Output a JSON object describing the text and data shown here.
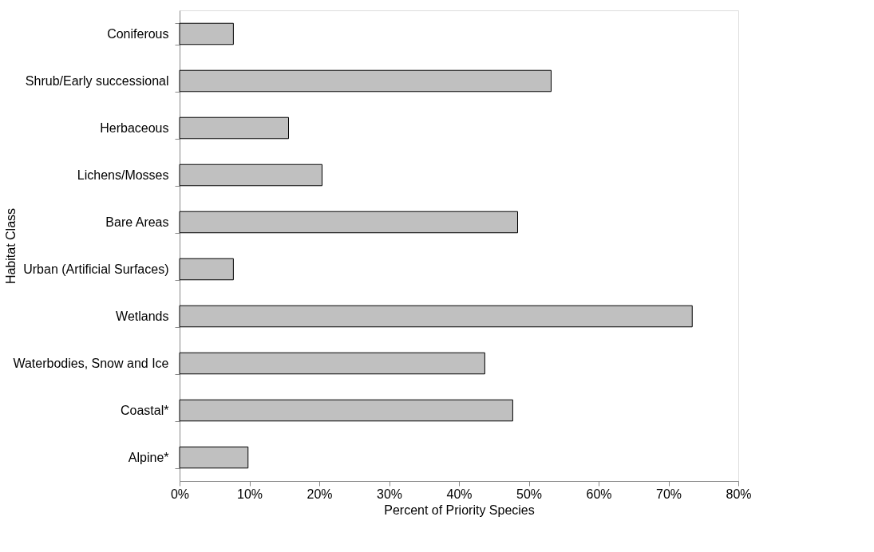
{
  "chart_data": {
    "type": "bar",
    "orientation": "horizontal",
    "ylabel": "Habitat Class",
    "xlabel": "Percent of Priority Species",
    "categories": [
      "Coniferous",
      "Shrub/Early successional",
      "Herbaceous",
      "Lichens/Mosses",
      "Bare Areas",
      "Urban (Artificial Surfaces)",
      "Wetlands",
      "Waterbodies, Snow and Ice",
      "Coastal*",
      "Alpine*"
    ],
    "values": [
      7.7,
      53.2,
      15.6,
      20.4,
      48.4,
      7.7,
      73.4,
      43.7,
      47.7,
      9.8
    ],
    "color": "#c0c0c0",
    "xlim": [
      0,
      80
    ],
    "xticks": [
      {
        "value": 0,
        "label": "0%"
      },
      {
        "value": 10,
        "label": "10%"
      },
      {
        "value": 20,
        "label": "20%"
      },
      {
        "value": 30,
        "label": "30%"
      },
      {
        "value": 40,
        "label": "40%"
      },
      {
        "value": 50,
        "label": "50%"
      },
      {
        "value": 60,
        "label": "60%"
      },
      {
        "value": 70,
        "label": "70%"
      },
      {
        "value": 80,
        "label": "80%"
      }
    ],
    "grid": false
  }
}
